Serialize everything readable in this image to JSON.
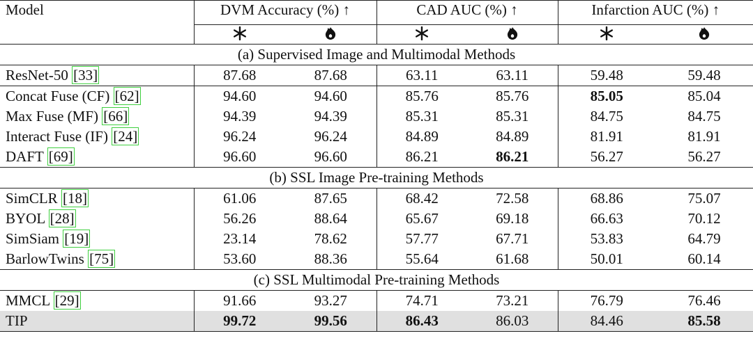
{
  "header": {
    "model": "Model",
    "groups": [
      "DVM Accuracy (%) ↑",
      "CAD AUC (%) ↑",
      "Infarction AUC (%) ↑"
    ]
  },
  "sections": [
    {
      "title": "(a) Supervised Image and Multimodal Methods",
      "groups": [
        [
          {
            "model": "ResNet-50",
            "citation": "[33]",
            "values": [
              "87.68",
              "87.68",
              "63.11",
              "63.11",
              "59.48",
              "59.48"
            ],
            "bold": []
          }
        ],
        [
          {
            "model": "Concat Fuse (CF)",
            "citation": "[62]",
            "values": [
              "94.60",
              "94.60",
              "85.76",
              "85.76",
              "85.05",
              "85.04"
            ],
            "bold": [
              4
            ]
          },
          {
            "model": "Max Fuse (MF)",
            "citation": "[66]",
            "values": [
              "94.39",
              "94.39",
              "85.31",
              "85.31",
              "84.75",
              "84.75"
            ],
            "bold": []
          },
          {
            "model": "Interact Fuse (IF)",
            "citation": "[24]",
            "values": [
              "96.24",
              "96.24",
              "84.89",
              "84.89",
              "81.91",
              "81.91"
            ],
            "bold": []
          },
          {
            "model": "DAFT",
            "citation": "[69]",
            "values": [
              "96.60",
              "96.60",
              "86.21",
              "86.21",
              "56.27",
              "56.27"
            ],
            "bold": [
              3
            ]
          }
        ]
      ]
    },
    {
      "title": "(b) SSL Image Pre-training Methods",
      "groups": [
        [
          {
            "model": "SimCLR",
            "citation": "[18]",
            "values": [
              "61.06",
              "87.65",
              "68.42",
              "72.58",
              "68.86",
              "75.07"
            ],
            "bold": []
          },
          {
            "model": "BYOL",
            "citation": "[28]",
            "values": [
              "56.26",
              "88.64",
              "65.67",
              "69.18",
              "66.63",
              "70.12"
            ],
            "bold": []
          },
          {
            "model": "SimSiam",
            "citation": "[19]",
            "values": [
              "23.14",
              "78.62",
              "57.77",
              "67.71",
              "53.83",
              "64.79"
            ],
            "bold": []
          },
          {
            "model": "BarlowTwins",
            "citation": "[75]",
            "values": [
              "53.60",
              "88.36",
              "55.64",
              "61.68",
              "50.01",
              "60.14"
            ],
            "bold": []
          }
        ]
      ]
    },
    {
      "title": "(c) SSL Multimodal Pre-training Methods",
      "groups": [
        [
          {
            "model": "MMCL",
            "citation": "[29]",
            "values": [
              "91.66",
              "93.27",
              "74.71",
              "73.21",
              "76.79",
              "76.46"
            ],
            "bold": []
          },
          {
            "model": "TIP",
            "values": [
              "99.72",
              "99.56",
              "86.43",
              "86.03",
              "84.46",
              "85.58"
            ],
            "bold": [
              0,
              1,
              2,
              5
            ],
            "highlight": true
          }
        ]
      ]
    }
  ]
}
